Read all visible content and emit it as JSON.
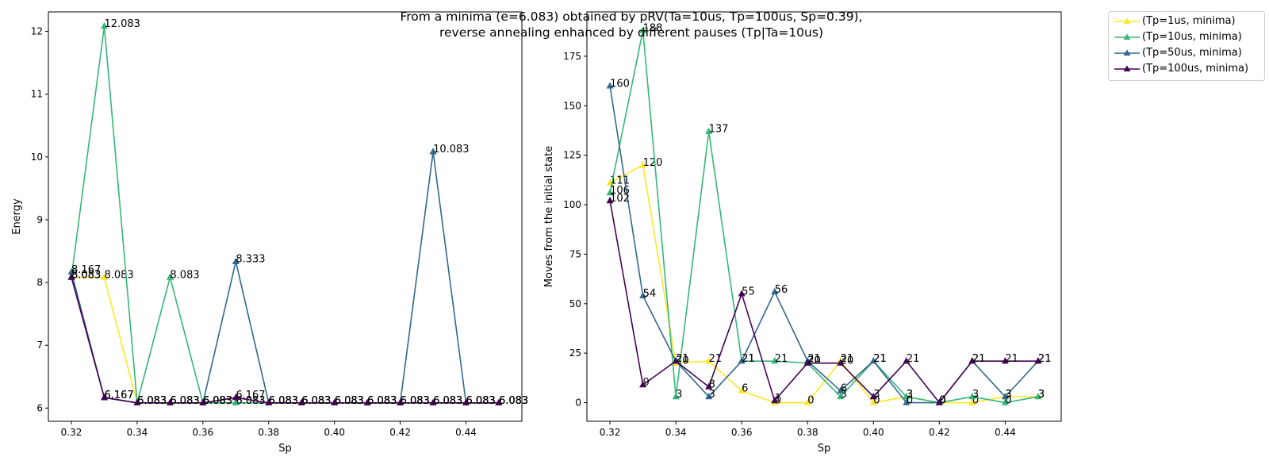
{
  "figure": {
    "title_lines": [
      "From a minima (e=6.083) obtained by pRV(Ta=10us, Tp=100us, Sp=0.39),",
      "reverse annealing enhanced by different pauses (Tp|Ta=10us)"
    ],
    "legend_placement": "outside-top-right",
    "legend": [
      {
        "name": "(Tp=1us, minima)",
        "color": "#fde725"
      },
      {
        "name": "(Tp=10us, minima)",
        "color": "#35b779"
      },
      {
        "name": "(Tp=50us, minima)",
        "color": "#31688e"
      },
      {
        "name": "(Tp=100us, minima)",
        "color": "#440154"
      }
    ]
  },
  "chart_data": [
    {
      "type": "line",
      "marker": "triangle",
      "xlabel": "Sp",
      "ylabel": "Energy",
      "xlim": [
        0.313,
        0.457
      ],
      "ylim": [
        5.79,
        12.31
      ],
      "xticks": [
        "0.32",
        "0.34",
        "0.36",
        "0.38",
        "0.40",
        "0.42",
        "0.44"
      ],
      "xtick_values": [
        0.32,
        0.34,
        0.36,
        0.38,
        0.4,
        0.42,
        0.44
      ],
      "yticks": [
        "6",
        "7",
        "8",
        "9",
        "10",
        "11",
        "12"
      ],
      "ytick_values": [
        6,
        7,
        8,
        9,
        10,
        11,
        12
      ],
      "grid": false,
      "x": [
        0.32,
        0.33,
        0.34,
        0.35,
        0.36,
        0.37,
        0.38,
        0.39,
        0.4,
        0.41,
        0.42,
        0.43,
        0.44,
        0.45
      ],
      "series": [
        {
          "name": "(Tp=1us, minima)",
          "color": "#fde725",
          "values": [
            8.083,
            8.083,
            6.083,
            6.083,
            6.083,
            6.083,
            6.083,
            6.083,
            6.083,
            6.083,
            6.083,
            6.083,
            6.083,
            6.083
          ],
          "labels": [
            "8.083",
            "8.083",
            "6.083",
            "6.083",
            "6.083",
            "6.083",
            "6.083",
            "6.083",
            "6.083",
            "6.083",
            "6.083",
            "6.083",
            "6.083",
            "6.083"
          ]
        },
        {
          "name": "(Tp=10us, minima)",
          "color": "#35b779",
          "values": [
            8.083,
            12.083,
            6.083,
            8.083,
            6.083,
            6.083,
            6.083,
            6.083,
            6.083,
            6.083,
            6.083,
            6.083,
            6.083,
            6.083
          ],
          "labels": [
            "8.083",
            "12.083",
            "6.083",
            "8.083",
            "6.083",
            "6.083",
            "6.083",
            "6.083",
            "6.083",
            "6.083",
            "6.083",
            "6.083",
            "6.083",
            "6.083"
          ]
        },
        {
          "name": "(Tp=50us, minima)",
          "color": "#31688e",
          "values": [
            8.167,
            6.167,
            6.083,
            6.083,
            6.083,
            8.333,
            6.083,
            6.083,
            6.083,
            6.083,
            6.083,
            10.083,
            6.083,
            6.083
          ],
          "labels": [
            "8.167",
            "6.167",
            "6.083",
            "6.083",
            "6.083",
            "8.333",
            "6.083",
            "6.083",
            "6.083",
            "6.083",
            "6.083",
            "10.083",
            "6.083",
            "6.083"
          ]
        },
        {
          "name": "(Tp=100us, minima)",
          "color": "#440154",
          "values": [
            8.083,
            6.167,
            6.083,
            6.083,
            6.083,
            6.167,
            6.083,
            6.083,
            6.083,
            6.083,
            6.083,
            6.083,
            6.083,
            6.083
          ],
          "labels": [
            "8.083",
            "6.167",
            "6.083",
            "6.083",
            "6.083",
            "6.167",
            "6.083",
            "6.083",
            "6.083",
            "6.083",
            "6.083",
            "6.083",
            "6.083",
            "6.083"
          ]
        }
      ]
    },
    {
      "type": "line",
      "marker": "triangle",
      "xlabel": "Sp",
      "ylabel": "Moves from the initial state",
      "xlim": [
        0.313,
        0.457
      ],
      "ylim": [
        -9.4,
        197.4
      ],
      "xticks": [
        "0.32",
        "0.34",
        "0.36",
        "0.38",
        "0.40",
        "0.42",
        "0.44"
      ],
      "xtick_values": [
        0.32,
        0.34,
        0.36,
        0.38,
        0.4,
        0.42,
        0.44
      ],
      "yticks": [
        "0",
        "25",
        "50",
        "75",
        "100",
        "125",
        "150",
        "175"
      ],
      "ytick_values": [
        0,
        25,
        50,
        75,
        100,
        125,
        150,
        175
      ],
      "grid": false,
      "x": [
        0.32,
        0.33,
        0.34,
        0.35,
        0.36,
        0.37,
        0.38,
        0.39,
        0.4,
        0.41,
        0.42,
        0.43,
        0.44,
        0.45
      ],
      "series": [
        {
          "name": "(Tp=1us, minima)",
          "color": "#fde725",
          "values": [
            111,
            120,
            20,
            21,
            6,
            0,
            0,
            21,
            0,
            3,
            0,
            0,
            3,
            3
          ],
          "labels": [
            "111",
            "120",
            "20",
            "21",
            "6",
            "0",
            "0",
            "21",
            "0",
            "3",
            "0",
            "0",
            "3",
            "3"
          ]
        },
        {
          "name": "(Tp=10us, minima)",
          "color": "#35b779",
          "values": [
            106,
            188,
            3,
            137,
            21,
            21,
            20,
            3,
            21,
            3,
            0,
            3,
            0,
            3
          ],
          "labels": [
            "106",
            "188",
            "3",
            "137",
            "21",
            "21",
            "20",
            "3",
            "21",
            "3",
            "0",
            "3",
            "0",
            "3"
          ]
        },
        {
          "name": "(Tp=50us, minima)",
          "color": "#31688e",
          "values": [
            160,
            54,
            21,
            3,
            21,
            56,
            21,
            6,
            21,
            0,
            0,
            21,
            3,
            21
          ],
          "labels": [
            "160",
            "54",
            "21",
            "3",
            "21",
            "56",
            "21",
            "6",
            "21",
            "0",
            "0",
            "21",
            "3",
            "21"
          ]
        },
        {
          "name": "(Tp=100us, minima)",
          "color": "#440154",
          "values": [
            102,
            9,
            21,
            8,
            55,
            1,
            20,
            20,
            3,
            21,
            0,
            21,
            21,
            21
          ],
          "labels": [
            "102",
            "9",
            "21",
            "8",
            "55",
            "1",
            "20",
            "20",
            "3",
            "21",
            "0",
            "21",
            "21",
            "21"
          ]
        }
      ]
    }
  ]
}
